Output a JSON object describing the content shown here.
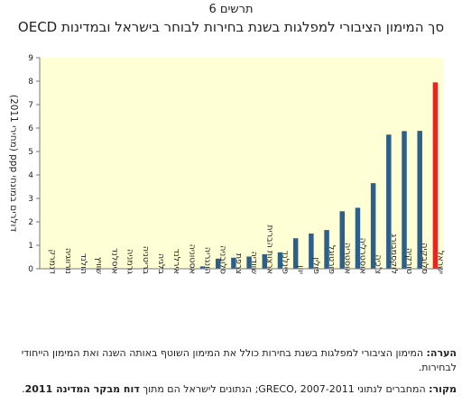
{
  "figure_label": "תרשים 6",
  "chart_data": {
    "type": "bar",
    "title": "סך המימון הציבורי למפלגות בשנת בחירות לבוחר בישראל ובמדינות OECD",
    "ylabel": "דולרים במונחי ppp (מחירי 2011)",
    "xlabel": "",
    "ylim": [
      0,
      9
    ],
    "yticks": [
      0,
      1,
      2,
      3,
      4,
      5,
      6,
      7,
      8,
      9
    ],
    "grid": false,
    "legend": "none",
    "categories": [
      "דנמרק",
      "נורווגיה",
      "הולנד",
      "שוויץ",
      "איסלנד",
      "גרמניה",
      "בריטניה",
      "בלגיה",
      "אירלנד",
      "אסטוניה",
      "הונגריה",
      "סלובניה",
      "צרפת",
      "שוודיה",
      "ארצות הברית",
      "פינלנד",
      "יוון",
      "פולין",
      "פורטוגל",
      "אוסטריה",
      "אוסטרליה",
      "צ'כיה",
      "לוקסמבורג",
      "טורקיה",
      "סלובקיה",
      "ישראל"
    ],
    "values": [
      0,
      0,
      0,
      0,
      0,
      0,
      0,
      0,
      0,
      0,
      0.1,
      0.43,
      0.47,
      0.52,
      0.62,
      0.7,
      1.3,
      1.5,
      1.65,
      2.45,
      2.6,
      3.65,
      5.72,
      5.87,
      5.88,
      7.95
    ],
    "colors": {
      "default": "#2d5f8b",
      "highlight": "#e8261f",
      "plot_bg": "#ffffd6"
    },
    "highlight_index": 25
  },
  "notes": {
    "note_label": "הערה:",
    "note_text": "המימון הציבורי למפלגות בשנת בחירות כולל את המימון השוטף באותה השנה ואת המימון הייחודי לבחירות.",
    "source_label": "מקור:",
    "source_text": "המחברים לנתוני GRECO, 2007-2011; הנתונים לישראל הם מתוך ",
    "source_bold": "דוח מבקר המדינה 2011",
    "source_end": "."
  }
}
